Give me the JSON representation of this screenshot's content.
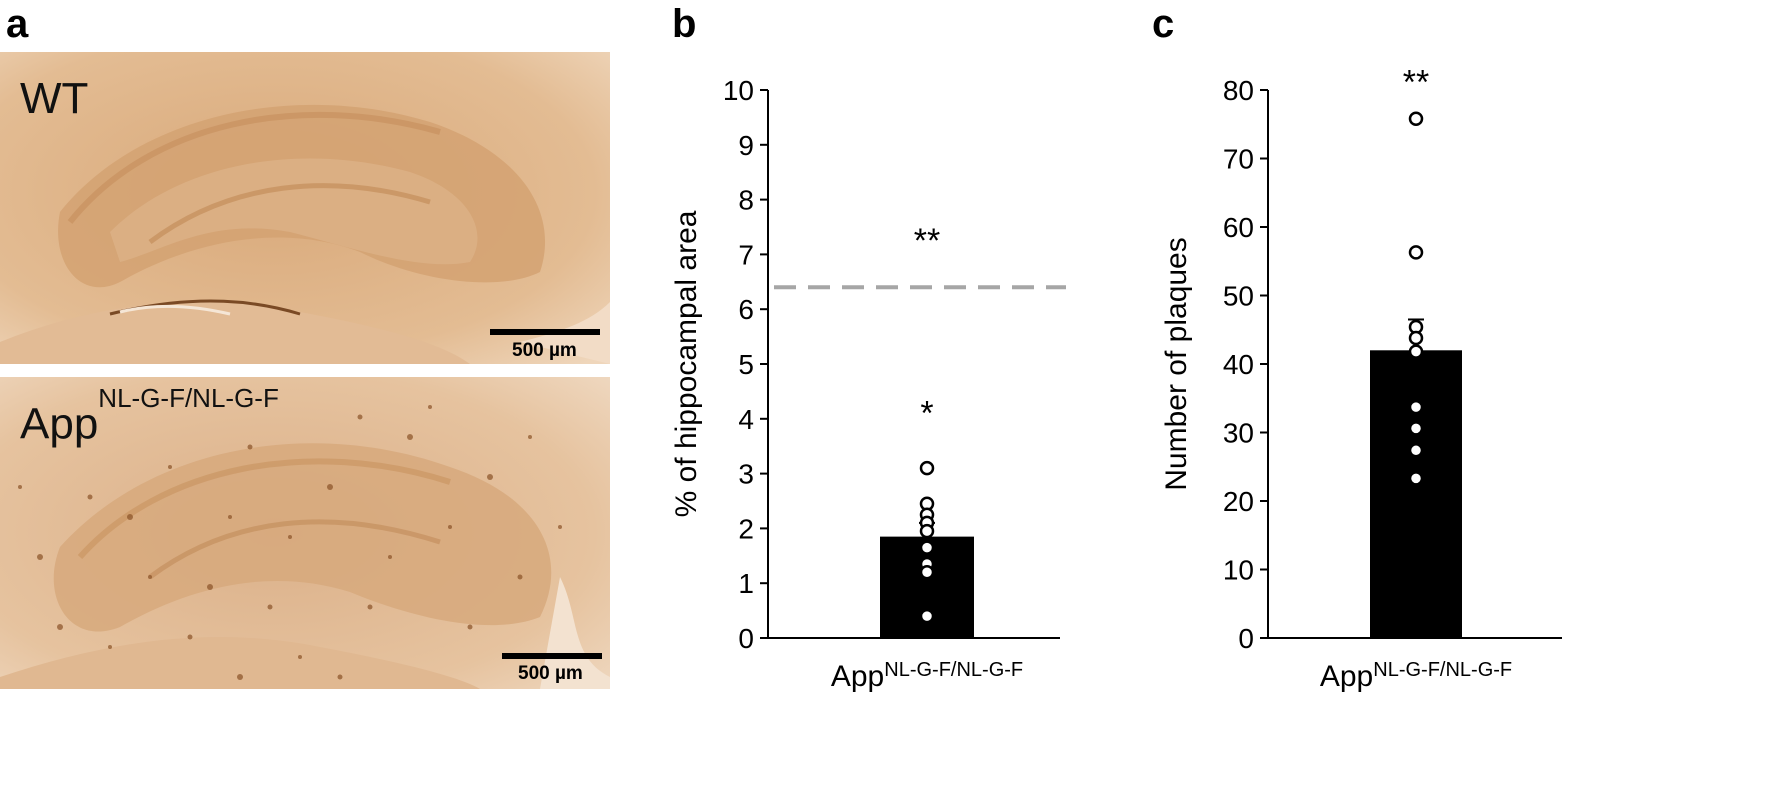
{
  "panels": {
    "a": {
      "letter": "a",
      "images": [
        {
          "label": "WT",
          "label_sup": "",
          "scale": "500 µm"
        },
        {
          "label": "App",
          "label_sup": "NL-G-F/NL-G-F",
          "scale": "500 µm"
        }
      ]
    },
    "b": {
      "letter": "b"
    },
    "c": {
      "letter": "c"
    }
  },
  "chart_data": [
    {
      "panel": "b",
      "type": "bar",
      "categories": [
        "App NL-G-F/NL-G-F"
      ],
      "xtick": {
        "base": "App",
        "sup": "NL-G-F/NL-G-F"
      },
      "values": [
        1.85
      ],
      "error": [
        0.25
      ],
      "points": [
        3.1,
        2.45,
        2.25,
        2.1,
        1.95,
        1.65,
        1.35,
        1.2,
        0.4
      ],
      "ylabel": "% of hippocampal area",
      "ylim": [
        0,
        10
      ],
      "yticks": [
        0,
        1,
        2,
        3,
        4,
        5,
        6,
        7,
        8,
        9,
        10
      ],
      "reference_line": {
        "value": 6.4,
        "style": "dashed",
        "color": "#a6a6a6"
      },
      "annotations": [
        {
          "text": "**",
          "y": 7.3
        },
        {
          "text": "*",
          "y": 4.15
        }
      ],
      "bar_color": "#000000",
      "grid": false
    },
    {
      "panel": "c",
      "type": "bar",
      "categories": [
        "App NL-G-F/NL-G-F"
      ],
      "xtick": {
        "base": "App",
        "sup": "NL-G-F/NL-G-F"
      },
      "values": [
        42
      ],
      "error": [
        4.5
      ],
      "points": [
        75.8,
        56.3,
        45.4,
        43.8,
        41.8,
        33.7,
        30.6,
        27.4,
        23.3
      ],
      "ylabel": "Number of plaques",
      "ylim": [
        0,
        80
      ],
      "yticks": [
        0,
        10,
        20,
        30,
        40,
        50,
        60,
        70,
        80
      ],
      "annotations": [
        {
          "text": "**",
          "y": 81.5
        }
      ],
      "bar_color": "#000000",
      "grid": false
    }
  ]
}
